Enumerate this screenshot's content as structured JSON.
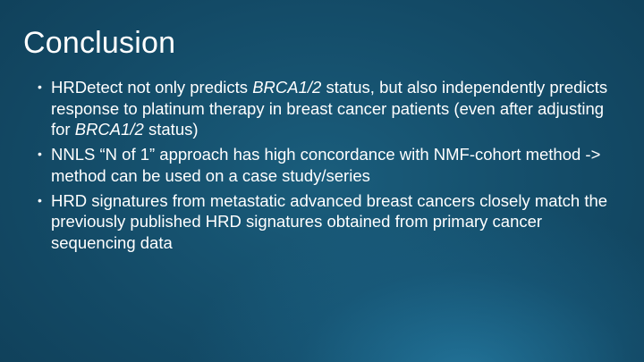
{
  "slide": {
    "title": "Conclusion",
    "bullets": [
      {
        "parts": [
          {
            "text": "HRDetect not only predicts ",
            "italic": false
          },
          {
            "text": "BRCA1/2",
            "italic": true
          },
          {
            "text": " status, but also independently predicts response to platinum therapy in breast cancer patients (even after adjusting for ",
            "italic": false
          },
          {
            "text": "BRCA1/2",
            "italic": true
          },
          {
            "text": " status)",
            "italic": false
          }
        ]
      },
      {
        "parts": [
          {
            "text": "NNLS “N of 1” approach has high concordance with NMF-cohort method -> method can be used on a case study/series",
            "italic": false
          }
        ]
      },
      {
        "parts": [
          {
            "text": "HRD signatures from metastatic advanced breast cancers closely match the previously published HRD signatures obtained from primary cancer sequencing data",
            "italic": false
          }
        ]
      }
    ],
    "bullet_glyph": "•"
  }
}
